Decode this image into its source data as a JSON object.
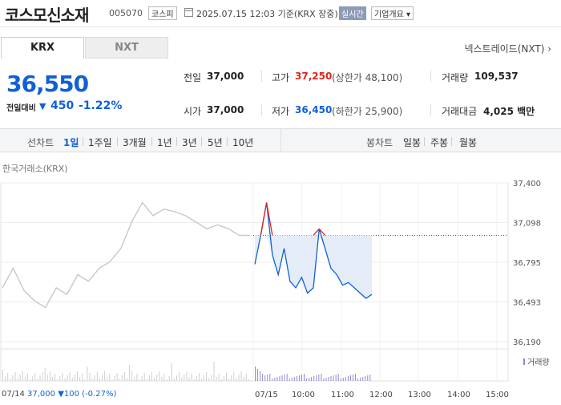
{
  "header": {
    "title": "코스모신소재",
    "code": "005070",
    "market": "코스피",
    "datetime": "2025.07.15 12:03 기준(KRX 장중)",
    "realtime": "실시간",
    "company_info": "기업개요 ▾"
  },
  "tabs": {
    "krx": "KRX",
    "nxt": "NXT",
    "nxt_link": "넥스트레이드(NXT) ›"
  },
  "price": {
    "current": "36,550",
    "change_label": "전일대비",
    "change_arrow": "▼",
    "change": "450",
    "change_pct": "-1.22%"
  },
  "stats": {
    "prev_close_label": "전일",
    "prev_close": "37,000",
    "high_label": "고가",
    "high": "37,250",
    "upper_limit": "(상한가 48,100)",
    "volume_label": "거래량",
    "volume": "109,537",
    "open_label": "시가",
    "open": "37,000",
    "low_label": "저가",
    "low": "36,450",
    "lower_limit": "(하한가 25,900)",
    "amount_label": "거래대금",
    "amount": "4,025 백만"
  },
  "periodbar": {
    "line_label": "선차트",
    "line_items": [
      "1일",
      "1주일",
      "3개월",
      "1년",
      "3년",
      "5년",
      "10년"
    ],
    "candle_label": "봉차트",
    "candle_items": [
      "일봉",
      "주봉",
      "월봉"
    ]
  },
  "chart_source": "한국거래소(KRX)",
  "volume_legend": "거래량",
  "prev_day": {
    "date": "07/14",
    "price": "37,000",
    "change": "▼100",
    "pct": "(-0.27%)"
  },
  "chart_data": {
    "type": "line",
    "y_ticks": [
      "37,400",
      "37,098",
      "36,795",
      "36,493",
      "36,190"
    ],
    "ylim": [
      36190,
      37400
    ],
    "x_ticks": [
      "07/15",
      "10:00",
      "11:00",
      "12:00",
      "13:00",
      "14:00",
      "15:00"
    ],
    "prev_close": 37000,
    "today_series": [
      {
        "time": "09:00",
        "value": 36780
      },
      {
        "time": "09:05",
        "value": 37000
      },
      {
        "time": "09:10",
        "value": 37250
      },
      {
        "time": "09:15",
        "value": 36850
      },
      {
        "time": "09:20",
        "value": 36700
      },
      {
        "time": "09:30",
        "value": 36900
      },
      {
        "time": "09:40",
        "value": 36650
      },
      {
        "time": "09:50",
        "value": 36600
      },
      {
        "time": "10:00",
        "value": 36680
      },
      {
        "time": "10:10",
        "value": 36560
      },
      {
        "time": "10:20",
        "value": 36600
      },
      {
        "time": "10:30",
        "value": 37050
      },
      {
        "time": "10:40",
        "value": 36900
      },
      {
        "time": "10:50",
        "value": 36750
      },
      {
        "time": "11:00",
        "value": 36700
      },
      {
        "time": "11:10",
        "value": 36620
      },
      {
        "time": "11:20",
        "value": 36640
      },
      {
        "time": "11:30",
        "value": 36600
      },
      {
        "time": "11:40",
        "value": 36560
      },
      {
        "time": "11:45",
        "value": 36520
      },
      {
        "time": "11:50",
        "value": 36550
      }
    ],
    "prev_day_series_values": [
      36600,
      36750,
      36580,
      36500,
      36450,
      36600,
      36550,
      36700,
      36650,
      36750,
      36800,
      36900,
      37100,
      37250,
      37150,
      37200,
      37180,
      37150,
      37100,
      37050,
      37080,
      37050,
      37000,
      37000
    ]
  },
  "colors": {
    "up": "#e0251b",
    "down": "#1061d4",
    "prev_line": "#c8c8c8",
    "fill": "#e4ecf8"
  }
}
